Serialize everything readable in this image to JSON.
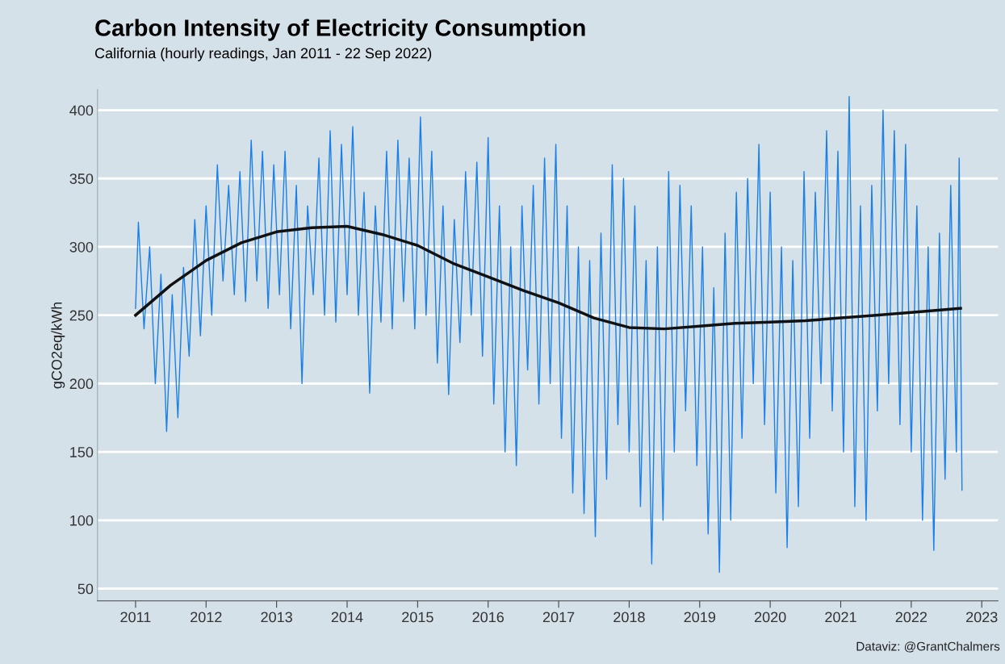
{
  "chart_data": {
    "type": "line",
    "title": "Carbon Intensity of Electricity Consumption",
    "subtitle": "California (hourly readings, Jan 2011 - 22 Sep 2022)",
    "ylabel": "gCO2eq/kWh",
    "annotations": [
      "Dataviz: @GrantChalmers"
    ],
    "xlim": [
      2010.46,
      2023.23
    ],
    "ylim": [
      41,
      415
    ],
    "xticks": [
      2011,
      2012,
      2013,
      2014,
      2015,
      2016,
      2017,
      2018,
      2019,
      2020,
      2021,
      2022,
      2023
    ],
    "yticks": [
      50,
      100,
      150,
      200,
      250,
      300,
      350,
      400
    ],
    "grid": "y",
    "legend": false,
    "marker": "none",
    "line_style": "solid",
    "series": [
      {
        "color": "#1a7fe8",
        "x": [
          2011.0,
          2011.04,
          2011.12,
          2011.2,
          2011.28,
          2011.36,
          2011.44,
          2011.52,
          2011.6,
          2011.68,
          2011.76,
          2011.84,
          2011.92,
          2012.0,
          2012.08,
          2012.16,
          2012.24,
          2012.32,
          2012.4,
          2012.48,
          2012.56,
          2012.64,
          2012.72,
          2012.8,
          2012.88,
          2012.96,
          2013.04,
          2013.12,
          2013.2,
          2013.28,
          2013.36,
          2013.44,
          2013.52,
          2013.6,
          2013.68,
          2013.76,
          2013.84,
          2013.92,
          2014.0,
          2014.08,
          2014.16,
          2014.24,
          2014.32,
          2014.4,
          2014.48,
          2014.56,
          2014.64,
          2014.72,
          2014.8,
          2014.88,
          2014.96,
          2015.04,
          2015.12,
          2015.2,
          2015.28,
          2015.36,
          2015.44,
          2015.52,
          2015.6,
          2015.68,
          2015.76,
          2015.84,
          2015.92,
          2016.0,
          2016.08,
          2016.16,
          2016.24,
          2016.32,
          2016.4,
          2016.48,
          2016.56,
          2016.64,
          2016.72,
          2016.8,
          2016.88,
          2016.96,
          2017.04,
          2017.12,
          2017.2,
          2017.28,
          2017.36,
          2017.44,
          2017.52,
          2017.6,
          2017.68,
          2017.76,
          2017.84,
          2017.92,
          2018.0,
          2018.08,
          2018.16,
          2018.24,
          2018.32,
          2018.4,
          2018.48,
          2018.56,
          2018.64,
          2018.72,
          2018.8,
          2018.88,
          2018.96,
          2019.04,
          2019.12,
          2019.2,
          2019.28,
          2019.36,
          2019.44,
          2019.52,
          2019.6,
          2019.68,
          2019.76,
          2019.84,
          2019.92,
          2020.0,
          2020.08,
          2020.16,
          2020.24,
          2020.32,
          2020.4,
          2020.48,
          2020.56,
          2020.64,
          2020.72,
          2020.8,
          2020.88,
          2020.96,
          2021.04,
          2021.12,
          2021.2,
          2021.28,
          2021.36,
          2021.44,
          2021.52,
          2021.6,
          2021.68,
          2021.76,
          2021.84,
          2021.92,
          2022.0,
          2022.08,
          2022.16,
          2022.24,
          2022.32,
          2022.4,
          2022.48,
          2022.56,
          2022.64,
          2022.68,
          2022.72
        ],
        "values": [
          255,
          318,
          240,
          300,
          200,
          280,
          165,
          265,
          175,
          285,
          220,
          320,
          235,
          330,
          250,
          360,
          275,
          345,
          265,
          355,
          260,
          378,
          275,
          370,
          255,
          360,
          265,
          370,
          240,
          345,
          200,
          330,
          265,
          365,
          250,
          385,
          245,
          375,
          265,
          388,
          250,
          340,
          193,
          330,
          245,
          370,
          240,
          378,
          260,
          365,
          240,
          395,
          250,
          370,
          215,
          330,
          192,
          320,
          230,
          355,
          250,
          362,
          220,
          380,
          185,
          330,
          150,
          300,
          140,
          330,
          210,
          345,
          185,
          365,
          200,
          375,
          160,
          330,
          120,
          300,
          105,
          290,
          88,
          310,
          130,
          360,
          170,
          350,
          150,
          330,
          110,
          290,
          68,
          300,
          100,
          355,
          150,
          345,
          180,
          330,
          140,
          300,
          90,
          270,
          62,
          310,
          100,
          340,
          160,
          350,
          200,
          375,
          170,
          340,
          120,
          300,
          80,
          290,
          110,
          355,
          160,
          340,
          200,
          385,
          180,
          370,
          150,
          410,
          110,
          330,
          100,
          345,
          180,
          400,
          200,
          385,
          170,
          375,
          150,
          330,
          100,
          300,
          78,
          310,
          130,
          345,
          150,
          365,
          122
        ]
      },
      {
        "color": "#111111",
        "x": [
          2011.0,
          2011.5,
          2012.0,
          2012.5,
          2013.0,
          2013.5,
          2014.0,
          2014.5,
          2015.0,
          2015.5,
          2016.0,
          2016.5,
          2017.0,
          2017.5,
          2018.0,
          2018.5,
          2019.0,
          2019.5,
          2020.0,
          2020.5,
          2021.0,
          2021.5,
          2022.0,
          2022.7
        ],
        "values": [
          250,
          272,
          290,
          303,
          311,
          314,
          315,
          309,
          301,
          288,
          278,
          268,
          259,
          248,
          241,
          240,
          242,
          244,
          245,
          246,
          248,
          250,
          252,
          255
        ]
      }
    ]
  }
}
